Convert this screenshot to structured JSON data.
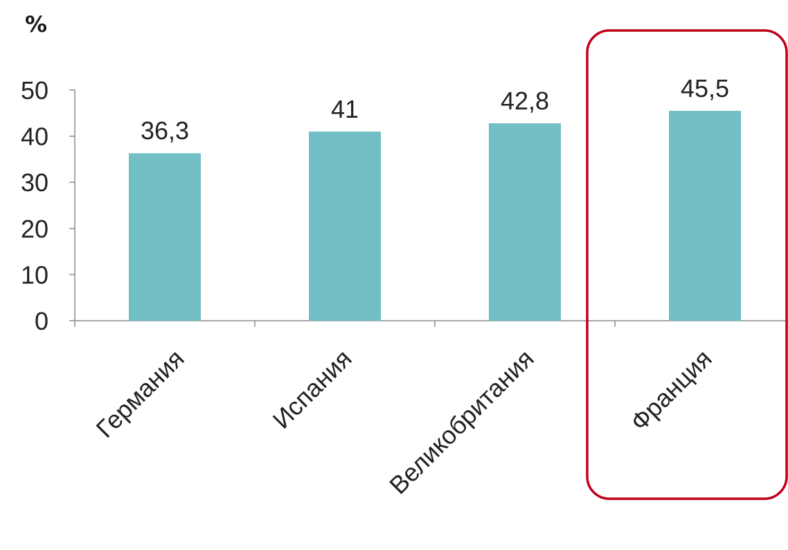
{
  "chart_data": {
    "type": "bar",
    "unit_label": "%",
    "categories": [
      "Германия",
      "Испания",
      "Великобритания",
      "Франция"
    ],
    "values": [
      36.3,
      41,
      42.8,
      45.5
    ],
    "value_labels": [
      "36,3",
      "41",
      "42,8",
      "45,5"
    ],
    "ylim": [
      0,
      50
    ],
    "y_ticks": [
      0,
      10,
      20,
      30,
      40,
      50
    ],
    "grid": false,
    "highlighted_category": "Франция",
    "bar_color": "#73bfc6",
    "highlight_color": "#c0001a"
  }
}
